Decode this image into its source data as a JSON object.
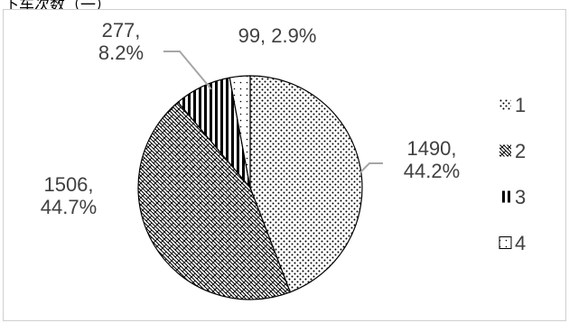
{
  "header": {
    "caption_fragment": "下车次数（一）"
  },
  "chart_data": {
    "type": "pie",
    "title": "",
    "slices": [
      {
        "label": "1",
        "value": 1490,
        "percent": "44.2%",
        "pattern": "dots"
      },
      {
        "label": "2",
        "value": 1506,
        "percent": "44.7%",
        "pattern": "weave"
      },
      {
        "label": "3",
        "value": 277,
        "percent": "8.2%",
        "pattern": "vertical-stripes"
      },
      {
        "label": "4",
        "value": 99,
        "percent": "2.9%",
        "pattern": "sparse-dots"
      }
    ],
    "data_labels": [
      "1490, 44.2%",
      "1506, 44.7%",
      "277, 8.2%",
      "99, 2.9%"
    ],
    "legend": {
      "position": "right",
      "entries": [
        "1",
        "2",
        "3",
        "4"
      ]
    },
    "colors": {
      "text": "#404040",
      "outline": "#000000",
      "leader_line": "#a6a6a6",
      "frame": "#cfcfcf"
    }
  }
}
